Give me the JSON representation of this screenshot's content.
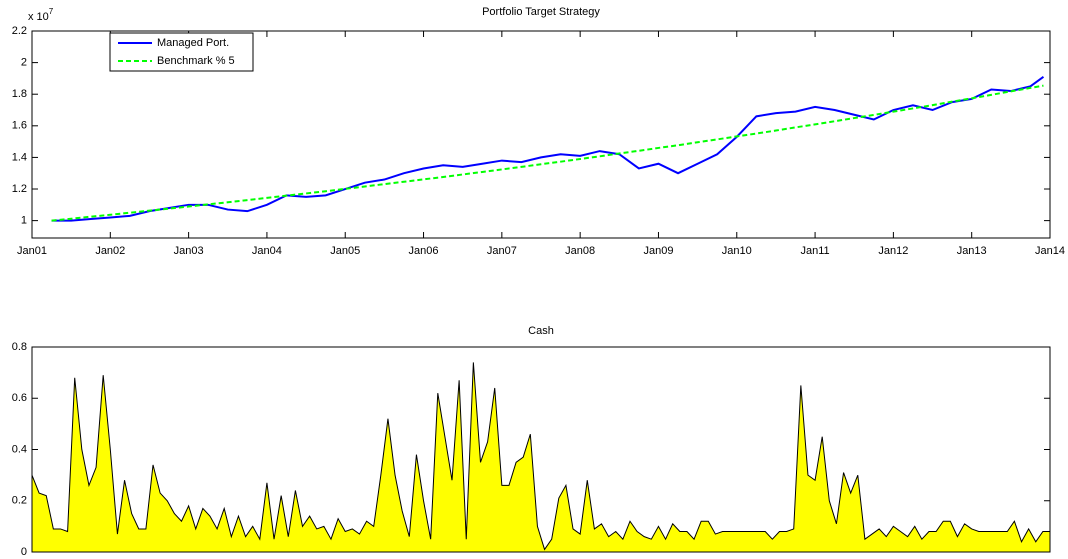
{
  "chart_data": [
    {
      "type": "line",
      "title": "Portfolio Target Strategy",
      "y_scale_label": {
        "base": "x 10",
        "exponent": "7"
      },
      "x": [
        "2001-04",
        "2001-07",
        "2001-10",
        "2002-01",
        "2002-04",
        "2002-07",
        "2002-10",
        "2003-01",
        "2003-04",
        "2003-07",
        "2003-10",
        "2004-01",
        "2004-04",
        "2004-07",
        "2004-10",
        "2005-01",
        "2005-04",
        "2005-07",
        "2005-10",
        "2006-01",
        "2006-04",
        "2006-07",
        "2006-10",
        "2007-01",
        "2007-04",
        "2007-07",
        "2007-10",
        "2008-01",
        "2008-04",
        "2008-07",
        "2008-10",
        "2009-01",
        "2009-04",
        "2009-07",
        "2009-10",
        "2010-01",
        "2010-04",
        "2010-07",
        "2010-10",
        "2011-01",
        "2011-04",
        "2011-07",
        "2011-10",
        "2012-01",
        "2012-04",
        "2012-07",
        "2012-10",
        "2013-01",
        "2013-04",
        "2013-07",
        "2013-10",
        "2013-12"
      ],
      "series": [
        {
          "name": "Managed Port.",
          "color": "#0000ff",
          "line_style": "solid",
          "values": [
            1.0,
            1.0,
            1.01,
            1.02,
            1.03,
            1.06,
            1.08,
            1.1,
            1.1,
            1.07,
            1.06,
            1.1,
            1.16,
            1.15,
            1.16,
            1.2,
            1.24,
            1.26,
            1.3,
            1.33,
            1.35,
            1.34,
            1.36,
            1.38,
            1.37,
            1.4,
            1.42,
            1.41,
            1.44,
            1.42,
            1.33,
            1.36,
            1.3,
            1.36,
            1.42,
            1.53,
            1.66,
            1.68,
            1.69,
            1.72,
            1.7,
            1.67,
            1.64,
            1.7,
            1.73,
            1.7,
            1.75,
            1.77,
            1.83,
            1.82,
            1.85,
            1.91
          ]
        },
        {
          "name": "Benchmark % 5",
          "color": "#00ff00",
          "line_style": "dashed",
          "values": [
            1.0,
            1.012,
            1.025,
            1.037,
            1.05,
            1.063,
            1.076,
            1.089,
            1.103,
            1.116,
            1.13,
            1.144,
            1.158,
            1.172,
            1.186,
            1.201,
            1.216,
            1.231,
            1.246,
            1.261,
            1.276,
            1.292,
            1.308,
            1.324,
            1.34,
            1.357,
            1.373,
            1.39,
            1.407,
            1.425,
            1.442,
            1.46,
            1.477,
            1.496,
            1.514,
            1.533,
            1.551,
            1.57,
            1.59,
            1.609,
            1.629,
            1.649,
            1.669,
            1.69,
            1.71,
            1.731,
            1.753,
            1.774,
            1.796,
            1.818,
            1.84,
            1.854
          ]
        }
      ],
      "xlim": [
        "2001-01",
        "2014-01"
      ],
      "xticks": [
        {
          "value": "2001-01",
          "label": "Jan01"
        },
        {
          "value": "2002-01",
          "label": "Jan02"
        },
        {
          "value": "2003-01",
          "label": "Jan03"
        },
        {
          "value": "2004-01",
          "label": "Jan04"
        },
        {
          "value": "2005-01",
          "label": "Jan05"
        },
        {
          "value": "2006-01",
          "label": "Jan06"
        },
        {
          "value": "2007-01",
          "label": "Jan07"
        },
        {
          "value": "2008-01",
          "label": "Jan08"
        },
        {
          "value": "2009-01",
          "label": "Jan09"
        },
        {
          "value": "2010-01",
          "label": "Jan10"
        },
        {
          "value": "2011-01",
          "label": "Jan11"
        },
        {
          "value": "2012-01",
          "label": "Jan12"
        },
        {
          "value": "2013-01",
          "label": "Jan13"
        },
        {
          "value": "2014-01",
          "label": "Jan14"
        }
      ],
      "ylim": [
        0.89,
        2.2
      ],
      "yticks": [
        1,
        1.2,
        1.4,
        1.6,
        1.8,
        2,
        2.2
      ],
      "legend": "northwest",
      "grid": false
    },
    {
      "type": "area",
      "title": "Cash",
      "color": "#ffff00",
      "edge_color": "#000000",
      "values": [
        0.3,
        0.23,
        0.22,
        0.09,
        0.09,
        0.08,
        0.68,
        0.4,
        0.26,
        0.33,
        0.69,
        0.4,
        0.07,
        0.28,
        0.15,
        0.09,
        0.09,
        0.34,
        0.23,
        0.2,
        0.15,
        0.12,
        0.18,
        0.09,
        0.17,
        0.14,
        0.09,
        0.17,
        0.06,
        0.14,
        0.06,
        0.1,
        0.05,
        0.27,
        0.05,
        0.22,
        0.06,
        0.24,
        0.1,
        0.14,
        0.09,
        0.1,
        0.05,
        0.13,
        0.08,
        0.09,
        0.07,
        0.12,
        0.1,
        0.3,
        0.52,
        0.3,
        0.16,
        0.06,
        0.38,
        0.2,
        0.05,
        0.62,
        0.45,
        0.28,
        0.67,
        0.05,
        0.74,
        0.35,
        0.43,
        0.64,
        0.26,
        0.26,
        0.35,
        0.37,
        0.46,
        0.1,
        0.01,
        0.05,
        0.21,
        0.26,
        0.09,
        0.07,
        0.28,
        0.09,
        0.11,
        0.06,
        0.08,
        0.05,
        0.12,
        0.08,
        0.06,
        0.05,
        0.1,
        0.05,
        0.11,
        0.08,
        0.08,
        0.05,
        0.12,
        0.12,
        0.07,
        0.08,
        0.08,
        0.08,
        0.08,
        0.08,
        0.08,
        0.08,
        0.05,
        0.08,
        0.08,
        0.09,
        0.65,
        0.3,
        0.28,
        0.45,
        0.2,
        0.11,
        0.31,
        0.23,
        0.3,
        0.05,
        0.07,
        0.09,
        0.06,
        0.1,
        0.08,
        0.06,
        0.1,
        0.05,
        0.08,
        0.08,
        0.12,
        0.12,
        0.06,
        0.11,
        0.09,
        0.08,
        0.08,
        0.08,
        0.08,
        0.08,
        0.12,
        0.04,
        0.09,
        0.04,
        0.08,
        0.08
      ],
      "ylim": [
        0,
        0.8
      ],
      "yticks": [
        0,
        0.2,
        0.4,
        0.6,
        0.8
      ],
      "grid": false
    }
  ]
}
